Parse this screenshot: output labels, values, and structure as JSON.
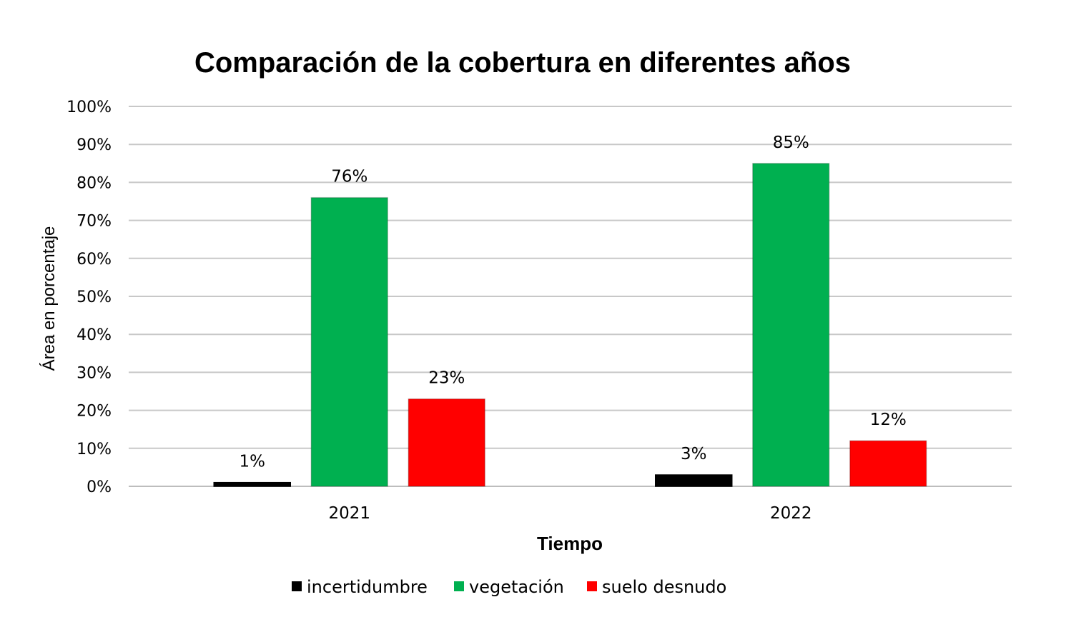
{
  "chart_data": {
    "type": "bar",
    "title": "Comparación de la cobertura en diferentes años",
    "xlabel": "Tiempo",
    "ylabel": "Área en porcentaje",
    "categories": [
      "2021",
      "2022"
    ],
    "ylim": [
      0,
      100
    ],
    "yticks": [
      "0%",
      "10%",
      "20%",
      "30%",
      "40%",
      "50%",
      "60%",
      "70%",
      "80%",
      "90%",
      "100%"
    ],
    "grid": true,
    "legend_position": "bottom",
    "series": [
      {
        "name": "incertidumbre",
        "color": "#000000",
        "values": [
          1,
          3
        ],
        "labels": [
          "1%",
          "3%"
        ]
      },
      {
        "name": "vegetación",
        "color": "#00b050",
        "values": [
          76,
          85
        ],
        "labels": [
          "76%",
          "85%"
        ]
      },
      {
        "name": "suelo desnudo",
        "color": "#ff0000",
        "values": [
          23,
          12
        ],
        "labels": [
          "23%",
          "12%"
        ]
      }
    ]
  }
}
